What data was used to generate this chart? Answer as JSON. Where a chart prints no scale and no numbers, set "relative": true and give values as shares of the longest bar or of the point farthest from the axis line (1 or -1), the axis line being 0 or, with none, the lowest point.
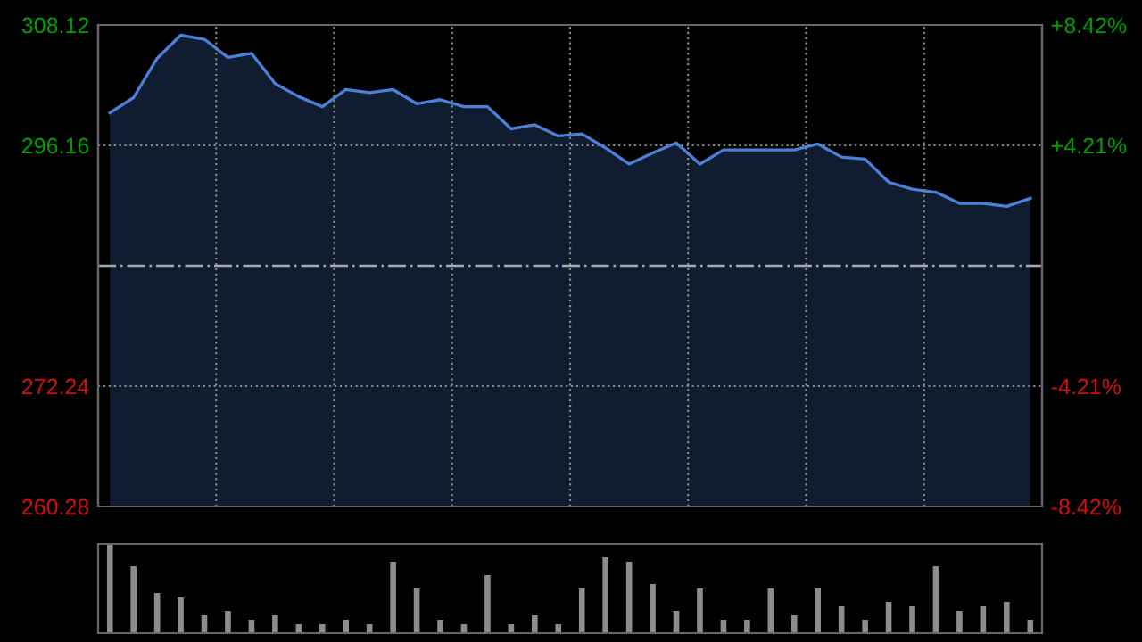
{
  "chart_data": [
    {
      "type": "area",
      "categories": [
        null,
        null,
        null,
        null,
        null,
        null,
        null,
        null,
        null,
        null,
        null,
        null,
        null,
        null,
        null,
        null,
        null,
        null,
        null,
        null,
        null,
        null,
        null,
        null,
        null,
        null,
        null,
        null,
        null,
        null,
        null,
        null,
        null,
        null,
        null,
        null,
        null,
        null,
        null,
        null
      ],
      "series": [
        {
          "color": "#4a80d8",
          "values": [
            299.4,
            300.9,
            304.8,
            307.1,
            306.7,
            304.9,
            305.3,
            302.3,
            301.0,
            300.0,
            301.7,
            301.4,
            301.7,
            300.3,
            300.7,
            300.0,
            300.0,
            297.8,
            298.2,
            297.1,
            297.3,
            295.9,
            294.3,
            295.4,
            296.4,
            294.3,
            295.7,
            295.7,
            295.7,
            295.7,
            296.3,
            295.0,
            294.8,
            292.5,
            291.8,
            291.5,
            290.4,
            290.4,
            290.1,
            290.9
          ]
        }
      ],
      "ylim": [
        260.28,
        308.12
      ],
      "yticks": [
        308.12,
        296.16,
        272.24,
        260.28
      ],
      "y2lim": [
        -8.42,
        8.42
      ],
      "y2ticks": [
        {
          "value": 8.42,
          "label": "+8.42%"
        },
        {
          "value": 4.21,
          "label": "+4.21%"
        },
        {
          "value": -4.21,
          "label": "-4.21%"
        },
        {
          "value": -8.42,
          "label": "-8.42%"
        }
      ],
      "ref_lines": [
        {
          "axis": "y",
          "value": 284.2,
          "color": "#aaaaaa",
          "line_style": "dashed"
        }
      ],
      "grid": true,
      "legend": false,
      "tick_labels": "y"
    },
    {
      "type": "bar",
      "relative": true,
      "categories": [
        null,
        null,
        null,
        null,
        null,
        null,
        null,
        null,
        null,
        null,
        null,
        null,
        null,
        null,
        null,
        null,
        null,
        null,
        null,
        null,
        null,
        null,
        null,
        null,
        null,
        null,
        null,
        null,
        null,
        null,
        null,
        null,
        null,
        null,
        null,
        null,
        null,
        null,
        null,
        null
      ],
      "series": [
        {
          "color": "#8c8c8c",
          "values": [
            1.0,
            0.75,
            0.45,
            0.4,
            0.2,
            0.25,
            0.15,
            0.2,
            0.1,
            0.1,
            0.15,
            0.1,
            0.8,
            0.5,
            0.15,
            0.1,
            0.65,
            0.1,
            0.2,
            0.1,
            0.5,
            0.85,
            0.8,
            0.55,
            0.25,
            0.5,
            0.15,
            0.15,
            0.5,
            0.2,
            0.5,
            0.3,
            0.15,
            0.35,
            0.3,
            0.75,
            0.25,
            0.3,
            0.35,
            0.15
          ]
        }
      ],
      "grid": false,
      "legend": false,
      "tick_labels": false
    }
  ]
}
